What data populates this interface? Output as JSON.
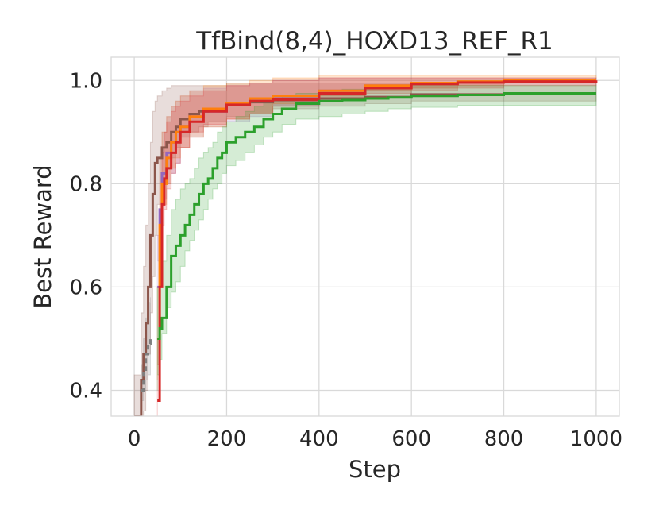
{
  "chart_data": {
    "type": "line",
    "title": "TfBind(8,4)_HOXD13_REF_R1",
    "xlabel": "Step",
    "ylabel": "Best Reward",
    "xlim": [
      -50,
      1050
    ],
    "ylim": [
      0.35,
      1.045
    ],
    "xticks": [
      0,
      200,
      400,
      600,
      800,
      1000
    ],
    "yticks": [
      0.4,
      0.6,
      0.8,
      1.0
    ],
    "xtick_labels": [
      "0",
      "200",
      "400",
      "600",
      "800",
      "1000"
    ],
    "ytick_labels": [
      "0.4",
      "0.6",
      "0.8",
      "1.0"
    ],
    "grid": true,
    "legend": "none",
    "series": [
      {
        "color": "#8c564b",
        "style": "solid",
        "x": [
          0,
          15,
          20,
          25,
          30,
          35,
          40,
          45,
          50,
          60,
          70,
          80,
          90,
          100,
          120,
          140,
          160,
          200,
          250,
          300,
          400,
          500,
          600,
          800,
          1000
        ],
        "y": [
          0.35,
          0.42,
          0.47,
          0.53,
          0.6,
          0.7,
          0.78,
          0.84,
          0.85,
          0.87,
          0.88,
          0.9,
          0.91,
          0.925,
          0.935,
          0.94,
          0.945,
          0.955,
          0.958,
          0.962,
          0.965,
          0.968,
          0.973,
          0.975,
          0.975
        ],
        "lower": [
          0.33,
          0.33,
          0.34,
          0.36,
          0.4,
          0.47,
          0.55,
          0.62,
          0.7,
          0.76,
          0.8,
          0.83,
          0.85,
          0.87,
          0.89,
          0.9,
          0.91,
          0.92,
          0.93,
          0.935,
          0.945,
          0.95,
          0.955,
          0.96,
          0.96
        ],
        "upper": [
          0.43,
          0.55,
          0.64,
          0.72,
          0.8,
          0.88,
          0.94,
          0.96,
          0.97,
          0.98,
          0.985,
          0.99,
          0.99,
          0.99,
          0.99,
          0.99,
          0.99,
          0.995,
          0.995,
          0.995,
          0.995,
          0.995,
          0.995,
          0.995,
          0.995
        ]
      },
      {
        "color": "#7f7f7f",
        "style": "dashed",
        "x": [
          15,
          20,
          25,
          30,
          35
        ],
        "y": [
          0.4,
          0.44,
          0.47,
          0.49,
          0.5
        ],
        "lower": [
          0.36,
          0.38,
          0.4,
          0.42,
          0.43
        ],
        "upper": [
          0.45,
          0.5,
          0.54,
          0.57,
          0.58
        ]
      },
      {
        "color": "#9467bd",
        "style": "solid",
        "x": [
          50,
          55,
          60,
          70,
          80,
          90,
          100,
          120,
          150,
          200,
          250,
          300,
          400,
          500,
          600,
          700,
          800,
          1000
        ],
        "y": [
          0.6,
          0.75,
          0.82,
          0.86,
          0.88,
          0.9,
          0.91,
          0.93,
          0.94,
          0.955,
          0.96,
          0.965,
          0.98,
          0.99,
          0.995,
          0.998,
          1.0,
          1.0
        ],
        "lower": [
          0.5,
          0.65,
          0.72,
          0.77,
          0.8,
          0.82,
          0.84,
          0.87,
          0.89,
          0.91,
          0.92,
          0.93,
          0.95,
          0.97,
          0.98,
          0.985,
          0.99,
          0.995
        ],
        "upper": [
          0.7,
          0.85,
          0.9,
          0.93,
          0.95,
          0.96,
          0.97,
          0.98,
          0.985,
          0.99,
          0.995,
          1.0,
          1.005,
          1.005,
          1.005,
          1.005,
          1.005,
          1.005
        ]
      },
      {
        "color": "#ff7f0e",
        "style": "solid",
        "x": [
          50,
          55,
          60,
          70,
          80,
          90,
          100,
          120,
          150,
          200,
          250,
          300,
          400,
          500,
          600,
          700,
          800,
          1000
        ],
        "y": [
          0.5,
          0.72,
          0.8,
          0.85,
          0.88,
          0.9,
          0.91,
          0.93,
          0.945,
          0.955,
          0.965,
          0.97,
          0.98,
          0.99,
          0.995,
          0.998,
          1.0,
          1.0
        ],
        "lower": [
          0.42,
          0.6,
          0.7,
          0.76,
          0.8,
          0.83,
          0.85,
          0.87,
          0.89,
          0.91,
          0.925,
          0.935,
          0.955,
          0.97,
          0.98,
          0.985,
          0.99,
          0.995
        ],
        "upper": [
          0.6,
          0.85,
          0.9,
          0.93,
          0.95,
          0.96,
          0.97,
          0.98,
          0.99,
          0.995,
          1.0,
          1.005,
          1.01,
          1.01,
          1.01,
          1.01,
          1.01,
          1.01
        ]
      },
      {
        "color": "#d62728",
        "style": "solid",
        "x": [
          50,
          55,
          60,
          65,
          70,
          80,
          90,
          100,
          120,
          150,
          200,
          250,
          300,
          400,
          500,
          600,
          700,
          800,
          1000
        ],
        "y": [
          0.38,
          0.6,
          0.76,
          0.81,
          0.83,
          0.86,
          0.88,
          0.9,
          0.92,
          0.94,
          0.953,
          0.96,
          0.963,
          0.975,
          0.985,
          0.993,
          0.996,
          0.998,
          1.0
        ],
        "lower": [
          0.35,
          0.5,
          0.66,
          0.72,
          0.75,
          0.79,
          0.82,
          0.84,
          0.87,
          0.9,
          0.915,
          0.925,
          0.935,
          0.95,
          0.965,
          0.975,
          0.98,
          0.985,
          0.99
        ],
        "upper": [
          0.45,
          0.7,
          0.86,
          0.9,
          0.92,
          0.94,
          0.95,
          0.96,
          0.97,
          0.98,
          0.99,
          0.995,
          1.0,
          1.005,
          1.005,
          1.005,
          1.005,
          1.005,
          1.005
        ]
      },
      {
        "color": "#2ca02c",
        "style": "solid",
        "x": [
          50,
          55,
          60,
          70,
          80,
          90,
          100,
          110,
          120,
          130,
          140,
          150,
          160,
          170,
          180,
          190,
          200,
          220,
          240,
          260,
          280,
          300,
          320,
          350,
          400,
          450,
          500,
          550,
          600,
          700,
          800,
          1000
        ],
        "y": [
          0.5,
          0.52,
          0.54,
          0.6,
          0.66,
          0.68,
          0.7,
          0.72,
          0.74,
          0.76,
          0.78,
          0.8,
          0.81,
          0.83,
          0.85,
          0.86,
          0.88,
          0.89,
          0.9,
          0.91,
          0.925,
          0.935,
          0.945,
          0.955,
          0.96,
          0.962,
          0.965,
          0.967,
          0.97,
          0.972,
          0.975,
          0.975
        ],
        "lower": [
          0.4,
          0.43,
          0.46,
          0.51,
          0.56,
          0.59,
          0.61,
          0.64,
          0.67,
          0.69,
          0.71,
          0.73,
          0.75,
          0.77,
          0.79,
          0.8,
          0.82,
          0.835,
          0.845,
          0.86,
          0.875,
          0.89,
          0.9,
          0.915,
          0.925,
          0.93,
          0.935,
          0.94,
          0.945,
          0.948,
          0.952,
          0.952
        ],
        "upper": [
          0.6,
          0.62,
          0.65,
          0.7,
          0.75,
          0.77,
          0.79,
          0.8,
          0.81,
          0.83,
          0.85,
          0.86,
          0.87,
          0.88,
          0.9,
          0.91,
          0.92,
          0.93,
          0.94,
          0.95,
          0.96,
          0.965,
          0.97,
          0.975,
          0.98,
          0.983,
          0.985,
          0.987,
          0.99,
          0.99,
          0.99,
          0.99
        ]
      }
    ]
  }
}
